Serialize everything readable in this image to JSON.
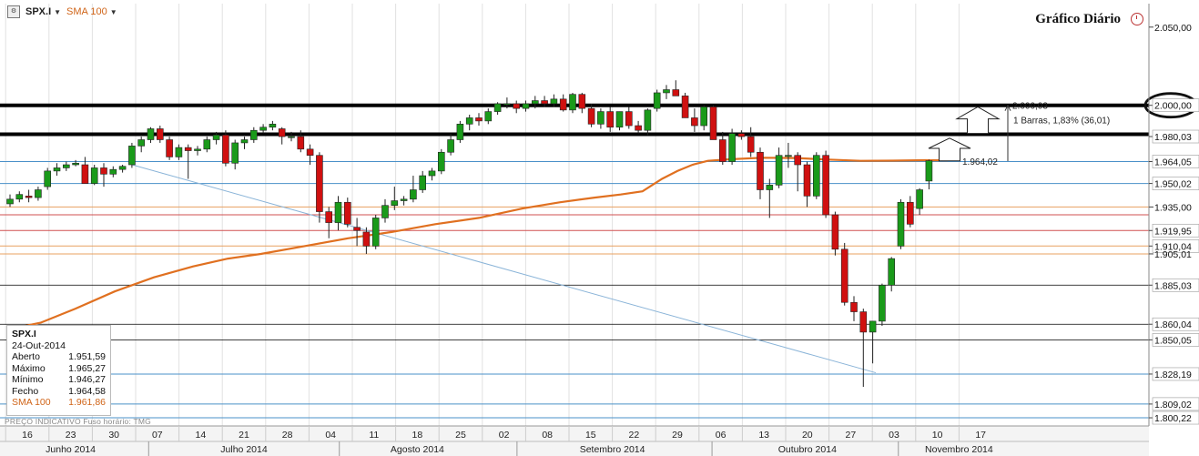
{
  "toolbar": {
    "icon": "chart-settings-icon",
    "symbol": "SPX.I",
    "sma_label": "SMA 100"
  },
  "title": "Gráfico Diário",
  "info_box": {
    "symbol": "SPX.I",
    "date": "24-Out-2014",
    "rows": [
      {
        "label": "Aberto",
        "value": "1.951,59"
      },
      {
        "label": "Máximo",
        "value": "1.965,27"
      },
      {
        "label": "Mínimo",
        "value": "1.946,27"
      },
      {
        "label": "Fecho",
        "value": "1.964,58"
      },
      {
        "label": "SMA 100",
        "value": "1.961,86"
      }
    ]
  },
  "footnote": "PREÇO INDICATIVO   Fuso horário: TMG",
  "colors": {
    "up": "#1a9a1a",
    "down": "#d01010",
    "sma": "#e07020",
    "blue_line": "#4a90c8",
    "black_line": "#000000",
    "orange_line": "#e8a060",
    "red_line": "#d05050"
  },
  "chart_data": {
    "type": "candlestick",
    "title": "Gráfico Diário",
    "ylim": [
      1795,
      2065
    ],
    "y_axis_labels": [
      {
        "value": 2050,
        "label": "2.050,00",
        "boxed": false
      },
      {
        "value": 2000,
        "label": "2.000,00",
        "boxed": true
      },
      {
        "value": 1980.03,
        "label": "1.980,03",
        "boxed": true
      },
      {
        "value": 1964.05,
        "label": "1.964,05",
        "boxed": true
      },
      {
        "value": 1950.02,
        "label": "1.950,02",
        "boxed": true
      },
      {
        "value": 1935,
        "label": "1.935,00",
        "boxed": false
      },
      {
        "value": 1919.95,
        "label": "1.919,95",
        "boxed": true
      },
      {
        "value": 1910.04,
        "label": "1.910,04",
        "boxed": true
      },
      {
        "value": 1905.01,
        "label": "1.905,01",
        "boxed": false
      },
      {
        "value": 1885.03,
        "label": "1.885,03",
        "boxed": true
      },
      {
        "value": 1860.04,
        "label": "1.860,04",
        "boxed": true
      },
      {
        "value": 1850.05,
        "label": "1.850,05",
        "boxed": true
      },
      {
        "value": 1828.19,
        "label": "1.828,19",
        "boxed": true
      },
      {
        "value": 1809.02,
        "label": "1.809,02",
        "boxed": true
      },
      {
        "value": 1800.22,
        "label": "1.800,22",
        "boxed": true
      }
    ],
    "horizontal_lines": [
      {
        "value": 2000,
        "style": "thick-black"
      },
      {
        "value": 1981.5,
        "style": "thick-black"
      },
      {
        "value": 1964.05,
        "style": "blue"
      },
      {
        "value": 1950.02,
        "style": "blue"
      },
      {
        "value": 1935,
        "style": "orange"
      },
      {
        "value": 1930,
        "style": "red"
      },
      {
        "value": 1919.95,
        "style": "red"
      },
      {
        "value": 1910.04,
        "style": "orange"
      },
      {
        "value": 1905.01,
        "style": "orange"
      },
      {
        "value": 1885.03,
        "style": "black"
      },
      {
        "value": 1860.04,
        "style": "black"
      },
      {
        "value": 1850.05,
        "style": "black"
      },
      {
        "value": 1828.19,
        "style": "blue"
      },
      {
        "value": 1809.02,
        "style": "blue"
      },
      {
        "value": 1800.22,
        "style": "blue"
      }
    ],
    "x_week_labels": [
      "16",
      "23",
      "30",
      "07",
      "14",
      "21",
      "28",
      "04",
      "11",
      "18",
      "25",
      "02",
      "08",
      "15",
      "22",
      "29",
      "06",
      "13",
      "20",
      "27",
      "03",
      "10",
      "17"
    ],
    "month_labels": [
      {
        "label": "Junho 2014",
        "week_index": 1
      },
      {
        "label": "Julho 2014",
        "week_index": 5
      },
      {
        "label": "Agosto 2014",
        "week_index": 9
      },
      {
        "label": "Setembro 2014",
        "week_index": 13.5
      },
      {
        "label": "Outubro 2014",
        "week_index": 18
      },
      {
        "label": "Novembro 2014",
        "week_index": 21.5
      }
    ],
    "month_dividers": [
      3.3,
      7.7,
      11.8,
      16.3,
      20.6
    ],
    "annotations": {
      "measure_top": "2.000,03",
      "measure_text": "1 Barras, 1,83% (36,01)",
      "price_label": "1.964,02"
    },
    "candles": [
      [
        1937.0,
        1943.0,
        1935.0,
        1940.0
      ],
      [
        1940.0,
        1945.0,
        1938.0,
        1943.0
      ],
      [
        1942.0,
        1946.0,
        1938.0,
        1941.0
      ],
      [
        1941.0,
        1948.0,
        1939.0,
        1946.0
      ],
      [
        1948.0,
        1960.0,
        1946.0,
        1958.0
      ],
      [
        1958.0,
        1963.0,
        1955.0,
        1960.0
      ],
      [
        1960.0,
        1964.0,
        1958.0,
        1962.0
      ],
      [
        1962.0,
        1965.0,
        1961.0,
        1963.0
      ],
      [
        1962.0,
        1967.0,
        1952.0,
        1950.0
      ],
      [
        1950.0,
        1962.0,
        1949.0,
        1960.0
      ],
      [
        1960.0,
        1963.0,
        1948.0,
        1956.0
      ],
      [
        1956.0,
        1961.0,
        1954.0,
        1959.0
      ],
      [
        1959.0,
        1962.0,
        1957.0,
        1961.0
      ],
      [
        1962.0,
        1976.0,
        1960.0,
        1974.0
      ],
      [
        1974.0,
        1980.0,
        1970.0,
        1978.0
      ],
      [
        1978.0,
        1986.0,
        1976.0,
        1985.0
      ],
      [
        1985.0,
        1987.0,
        1976.0,
        1978.0
      ],
      [
        1978.0,
        1980.0,
        1965.0,
        1967.0
      ],
      [
        1967.0,
        1975.0,
        1965.0,
        1973.0
      ],
      [
        1973.0,
        1975.0,
        1953.0,
        1971.0
      ],
      [
        1971.0,
        1974.0,
        1968.0,
        1972.0
      ],
      [
        1972.0,
        1980.0,
        1970.0,
        1978.0
      ],
      [
        1978.0,
        1983.0,
        1975.0,
        1981.0
      ],
      [
        1981.0,
        1984.0,
        1961.0,
        1963.0
      ],
      [
        1963.0,
        1978.0,
        1959.0,
        1976.0
      ],
      [
        1976.0,
        1980.0,
        1972.0,
        1978.0
      ],
      [
        1978.0,
        1986.0,
        1976.0,
        1984.0
      ],
      [
        1984.0,
        1988.0,
        1982.0,
        1986.0
      ],
      [
        1986.0,
        1990.0,
        1984.0,
        1988.0
      ],
      [
        1985.0,
        1986.0,
        1975.0,
        1980.0
      ],
      [
        1980.0,
        1983.0,
        1977.0,
        1980.0
      ],
      [
        1980.0,
        1984.0,
        1970.0,
        1972.0
      ],
      [
        1972.0,
        1975.0,
        1962.0,
        1968.0
      ],
      [
        1968.0,
        1970.0,
        1925.0,
        1932.0
      ],
      [
        1932.0,
        1935.0,
        1915.0,
        1925.0
      ],
      [
        1925.0,
        1942.0,
        1920.0,
        1938.0
      ],
      [
        1938.0,
        1941.0,
        1922.0,
        1924.0
      ],
      [
        1922.0,
        1928.0,
        1910.0,
        1920.0
      ],
      [
        1919.0,
        1922.0,
        1905.0,
        1910.0
      ],
      [
        1910.0,
        1930.0,
        1908.0,
        1928.0
      ],
      [
        1928.0,
        1940.0,
        1925.0,
        1936.0
      ],
      [
        1936.0,
        1948.0,
        1933.0,
        1939.0
      ],
      [
        1939.0,
        1942.0,
        1936.0,
        1940.0
      ],
      [
        1940.0,
        1955.0,
        1938.0,
        1946.0
      ],
      [
        1946.0,
        1958.0,
        1944.0,
        1955.0
      ],
      [
        1955.0,
        1960.0,
        1952.0,
        1958.0
      ],
      [
        1958.0,
        1972.0,
        1956.0,
        1970.0
      ],
      [
        1970.0,
        1982.0,
        1968.0,
        1978.0
      ],
      [
        1978.0,
        1990.0,
        1976.0,
        1988.0
      ],
      [
        1988.0,
        1994.0,
        1984.0,
        1992.0
      ],
      [
        1992.0,
        1995.0,
        1987.0,
        1990.0
      ],
      [
        1990.0,
        1998.0,
        1988.0,
        1996.0
      ],
      [
        1996.0,
        2002.0,
        1994.0,
        2001.0
      ],
      [
        2001.0,
        2005.0,
        1998.0,
        2001.0
      ],
      [
        2001.0,
        2003.0,
        1995.0,
        1998.0
      ],
      [
        1998.0,
        2003.0,
        1996.0,
        2001.0
      ],
      [
        2001.0,
        2006.0,
        1998.0,
        2003.0
      ],
      [
        2003.0,
        2006.0,
        1999.0,
        2001.0
      ],
      [
        2001.0,
        2007.0,
        1999.0,
        2004.0
      ],
      [
        2004.0,
        2007.0,
        1996.0,
        1997.0
      ],
      [
        1997.0,
        2008.0,
        1995.0,
        2007.0
      ],
      [
        2007.0,
        2008.0,
        1995.0,
        1998.0
      ],
      [
        1998.0,
        2001.0,
        1986.0,
        1988.0
      ],
      [
        1988.0,
        1998.0,
        1985.0,
        1996.0
      ],
      [
        1996.0,
        1999.0,
        1983.0,
        1986.0
      ],
      [
        1986.0,
        1996.0,
        1984.0,
        1996.0
      ],
      [
        1996.0,
        1999.0,
        1985.0,
        1987.0
      ],
      [
        1987.0,
        1990.0,
        1982.0,
        1984.0
      ],
      [
        1984.0,
        1998.0,
        1981.0,
        1997.0
      ],
      [
        1998.0,
        2010.0,
        1996.0,
        2008.0
      ],
      [
        2008.0,
        2013.0,
        2004.0,
        2010.0
      ],
      [
        2010.0,
        2016.0,
        2006.0,
        2006.0
      ],
      [
        2006.0,
        2008.0,
        1992.0,
        1992.0
      ],
      [
        1992.0,
        1998.0,
        1983.0,
        1987.0
      ],
      [
        1987.0,
        2000.0,
        1984.0,
        1999.0
      ],
      [
        1999.0,
        2000.0,
        1978.0,
        1978.0
      ],
      [
        1978.0,
        1983.0,
        1962.0,
        1964.0
      ],
      [
        1964.0,
        1985.0,
        1962.0,
        1982.0
      ],
      [
        1982.0,
        1984.0,
        1978.0,
        1980.0
      ],
      [
        1980.0,
        1986.0,
        1967.0,
        1970.0
      ],
      [
        1970.0,
        1973.0,
        1940.0,
        1946.0
      ],
      [
        1946.0,
        1953.0,
        1928.0,
        1949.0
      ],
      [
        1949.0,
        1973.0,
        1947.0,
        1968.0
      ],
      [
        1968.0,
        1976.0,
        1960.0,
        1968.0
      ],
      [
        1968.0,
        1970.0,
        1945.0,
        1962.0
      ],
      [
        1962.0,
        1964.0,
        1935.0,
        1942.0
      ],
      [
        1942.0,
        1970.0,
        1940.0,
        1968.0
      ],
      [
        1968.0,
        1971.0,
        1928.0,
        1930.0
      ],
      [
        1930.0,
        1932.0,
        1904.0,
        1908.0
      ],
      [
        1908.0,
        1912.0,
        1872.0,
        1874.0
      ],
      [
        1874.0,
        1878.0,
        1862.0,
        1868.0
      ],
      [
        1868.0,
        1870.0,
        1820.0,
        1855.0
      ],
      [
        1855.0,
        1862.0,
        1835.0,
        1862.0
      ],
      [
        1862.0,
        1886.0,
        1859.0,
        1885.0
      ],
      [
        1885.0,
        1903.0,
        1881.0,
        1902.0
      ],
      [
        1910.0,
        1940.0,
        1908.0,
        1938.0
      ],
      [
        1938.0,
        1942.0,
        1922.0,
        1924.0
      ],
      [
        1934.0,
        1947.0,
        1930.0,
        1946.0
      ],
      [
        1951.59,
        1965.27,
        1946.27,
        1964.58
      ]
    ],
    "sma_100": [
      [
        0,
        1857
      ],
      [
        14,
        1861
      ],
      [
        30,
        1870
      ],
      [
        48,
        1881
      ],
      [
        66,
        1890
      ],
      [
        84,
        1897
      ],
      [
        100,
        1902
      ],
      [
        115,
        1905
      ],
      [
        135,
        1910
      ],
      [
        155,
        1915
      ],
      [
        175,
        1919
      ],
      [
        195,
        1924
      ],
      [
        215,
        1928
      ],
      [
        235,
        1934
      ],
      [
        252,
        1938
      ],
      [
        268,
        1941
      ],
      [
        280,
        1943
      ],
      [
        290,
        1945
      ],
      [
        299,
        1953
      ],
      [
        306,
        1958
      ],
      [
        313,
        1962
      ],
      [
        320,
        1964.5
      ],
      [
        330,
        1965.5
      ],
      [
        345,
        1966.5
      ],
      [
        360,
        1966.3
      ],
      [
        375,
        1965.3
      ],
      [
        390,
        1964.5
      ],
      [
        405,
        1964.6
      ],
      [
        420,
        1964.9
      ],
      [
        430,
        1964.8
      ]
    ],
    "trendline": [
      [
        145,
        1962
      ],
      [
        962,
        1829
      ]
    ]
  }
}
